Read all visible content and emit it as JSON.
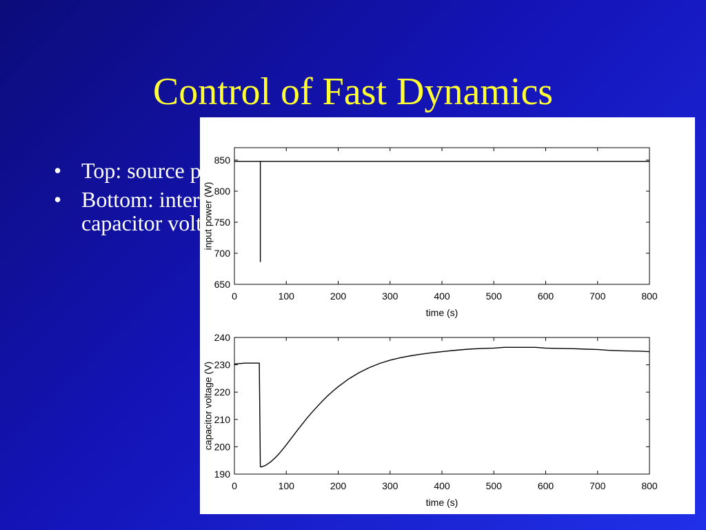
{
  "slide": {
    "title": "Control of Fast Dynamics",
    "bullets": [
      {
        "text": "Top:  source power"
      },
      {
        "text": "Bottom:  internal capacitor voltage"
      }
    ],
    "bullet_symbol": "•",
    "colors": {
      "title": "#ffff33",
      "text": "#ffffff",
      "background": "#1414b8"
    }
  },
  "chart_data": [
    {
      "type": "line",
      "xlabel": "time (s)",
      "ylabel": "input power (W)",
      "xlim": [
        0,
        800
      ],
      "ylim": [
        650,
        870
      ],
      "xticks": [
        0,
        100,
        200,
        300,
        400,
        500,
        600,
        700,
        800
      ],
      "yticks": [
        650,
        700,
        750,
        800,
        850
      ],
      "series": [
        {
          "x": [
            0,
            50,
            50,
            50,
            800
          ],
          "y": [
            848,
            848,
            686,
            848,
            848
          ]
        }
      ]
    },
    {
      "type": "line",
      "xlabel": "time (s)",
      "ylabel": "capacitor voltage (V)",
      "xlim": [
        0,
        800
      ],
      "ylim": [
        190,
        240
      ],
      "xticks": [
        0,
        100,
        200,
        300,
        400,
        500,
        600,
        700,
        800
      ],
      "yticks": [
        190,
        200,
        210,
        220,
        230,
        240
      ],
      "series": [
        {
          "x": [
            0,
            20,
            48,
            50,
            52,
            60,
            70,
            80,
            90,
            100,
            110,
            120,
            130,
            140,
            150,
            160,
            170,
            180,
            190,
            200,
            220,
            240,
            260,
            280,
            300,
            320,
            340,
            360,
            380,
            400,
            420,
            450,
            480,
            500,
            520,
            550,
            580,
            600,
            620,
            650,
            680,
            700,
            720,
            750,
            780,
            800
          ],
          "y": [
            230.3,
            230.6,
            230.6,
            192.7,
            192.6,
            193.2,
            194.5,
            196.2,
            198.3,
            200.7,
            203.2,
            205.7,
            208.1,
            210.5,
            212.7,
            214.8,
            216.8,
            218.7,
            220.4,
            222.0,
            224.8,
            227.1,
            229.0,
            230.5,
            231.7,
            232.6,
            233.3,
            233.9,
            234.4,
            234.8,
            235.2,
            235.7,
            236.0,
            236.1,
            236.4,
            236.4,
            236.4,
            236.1,
            236.0,
            235.9,
            235.7,
            235.6,
            235.3,
            235.1,
            235.0,
            234.8
          ]
        }
      ]
    }
  ]
}
